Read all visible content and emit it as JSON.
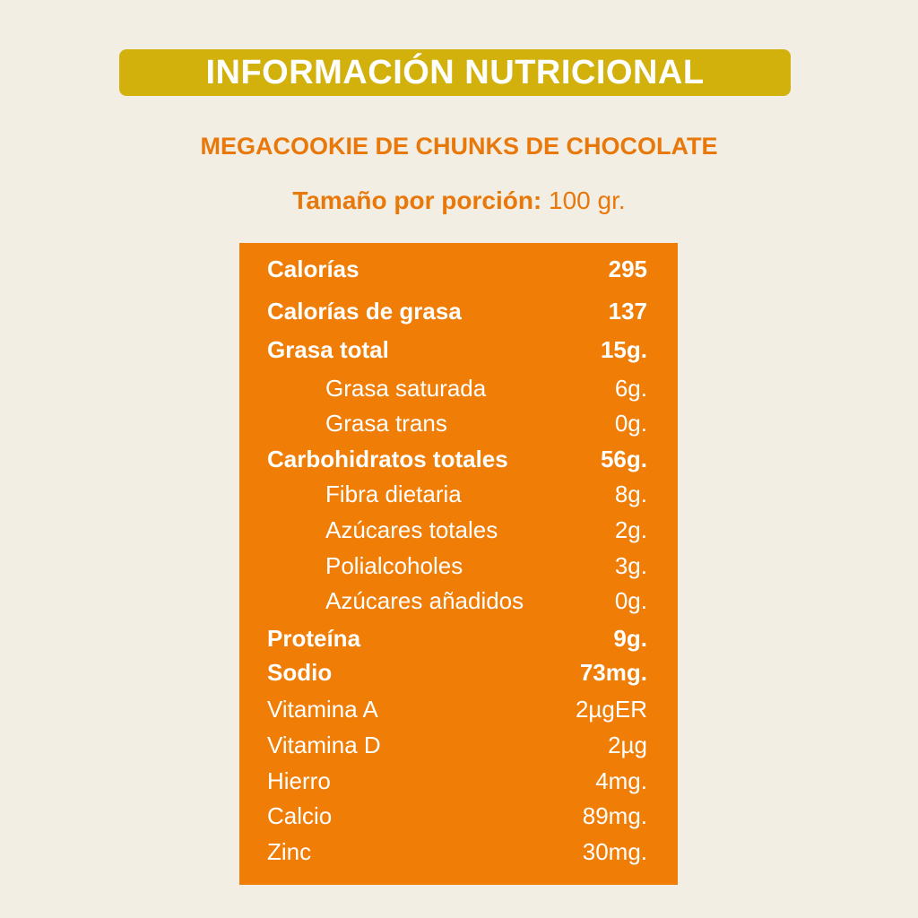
{
  "header": {
    "title": "INFORMACIÓN NUTRICIONAL",
    "subtitle": "MEGACOOKIE DE CHUNKS DE CHOCOLATE",
    "serving_label": "Tamaño por porción:",
    "serving_value": "100 gr."
  },
  "table": {
    "rows": [
      [
        "Calorías",
        "295"
      ],
      [
        "Calorías de grasa",
        "137"
      ],
      [
        "Grasa total",
        "15g."
      ],
      [
        "Grasa saturada",
        "6g."
      ],
      [
        "Grasa trans",
        "0g."
      ],
      [
        "Carbohidratos totales",
        "56g."
      ],
      [
        "Fibra dietaria",
        "8g."
      ],
      [
        "Azúcares totales",
        "2g."
      ],
      [
        "Polialcoholes",
        "3g."
      ],
      [
        "Azúcares añadidos",
        "0g."
      ],
      [
        "Proteína",
        "9g."
      ],
      [
        "Sodio",
        "73mg."
      ],
      [
        "Vitamina A",
        "2µgER"
      ],
      [
        "Vitamina D",
        "2µg"
      ],
      [
        "Hierro",
        "4mg."
      ],
      [
        "Calcio",
        "89mg."
      ],
      [
        "Zinc",
        "30mg."
      ]
    ]
  }
}
